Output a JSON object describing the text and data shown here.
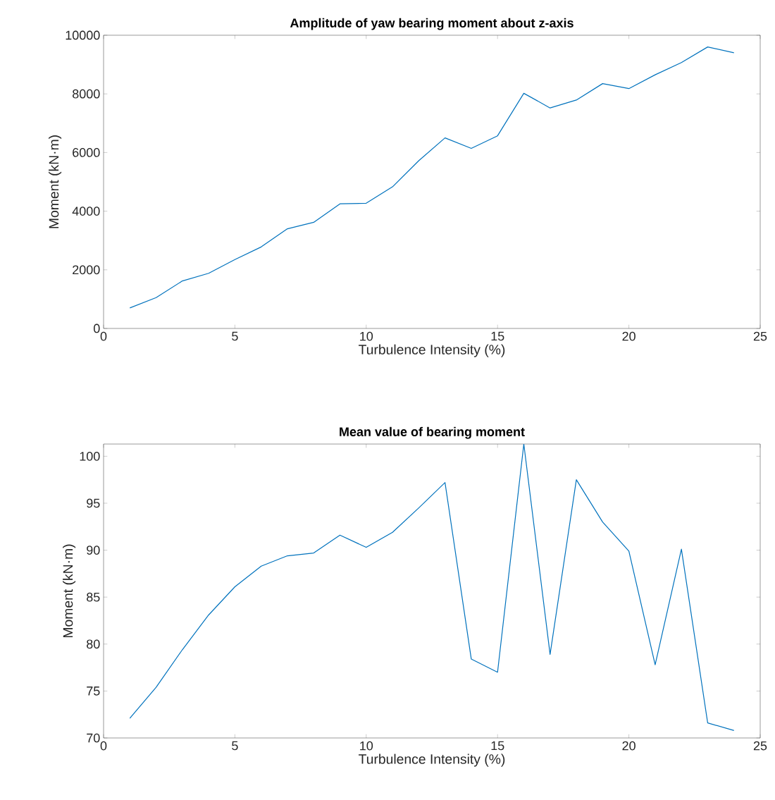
{
  "chart_data": [
    {
      "type": "line",
      "title": "Amplitude of yaw bearing moment about z-axis",
      "xlabel": "Turbulence Intensity (%)",
      "ylabel": "Moment (kN·m)",
      "color": "#0072bd",
      "x": [
        1,
        2,
        3,
        4,
        5,
        6,
        7,
        8,
        9,
        10,
        11,
        12,
        13,
        14,
        15,
        16,
        17,
        18,
        19,
        20,
        21,
        22,
        23,
        24
      ],
      "values": [
        700,
        1050,
        1620,
        1880,
        2350,
        2780,
        3400,
        3620,
        4250,
        4270,
        4830,
        5720,
        6500,
        6140,
        6570,
        8020,
        7520,
        7790,
        8350,
        8180,
        8650,
        9070,
        9600,
        9400
      ],
      "xlim": [
        0,
        25
      ],
      "ylim": [
        0,
        10000
      ],
      "xticks": [
        0,
        5,
        10,
        15,
        20,
        25
      ],
      "yticks": [
        0,
        2000,
        4000,
        6000,
        8000,
        10000
      ]
    },
    {
      "type": "line",
      "title": "Mean value of bearing moment",
      "xlabel": "Turbulence Intensity (%)",
      "ylabel": "Moment (kN·m)",
      "color": "#0072bd",
      "x": [
        1,
        2,
        3,
        4,
        5,
        6,
        7,
        8,
        9,
        10,
        11,
        12,
        13,
        14,
        15,
        16,
        17,
        18,
        19,
        20,
        21,
        22,
        23,
        24
      ],
      "values": [
        72.1,
        75.4,
        79.4,
        83.1,
        86.1,
        88.3,
        89.4,
        89.7,
        91.6,
        90.3,
        91.9,
        94.5,
        97.2,
        78.4,
        77.0,
        101.3,
        78.9,
        97.5,
        93.0,
        89.9,
        77.8,
        90.1,
        71.6,
        70.8
      ],
      "xlim": [
        0,
        25
      ],
      "ylim": [
        70,
        101.3
      ],
      "xticks": [
        0,
        5,
        10,
        15,
        20,
        25
      ],
      "yticks": [
        70,
        75,
        80,
        85,
        90,
        95,
        100
      ]
    }
  ]
}
